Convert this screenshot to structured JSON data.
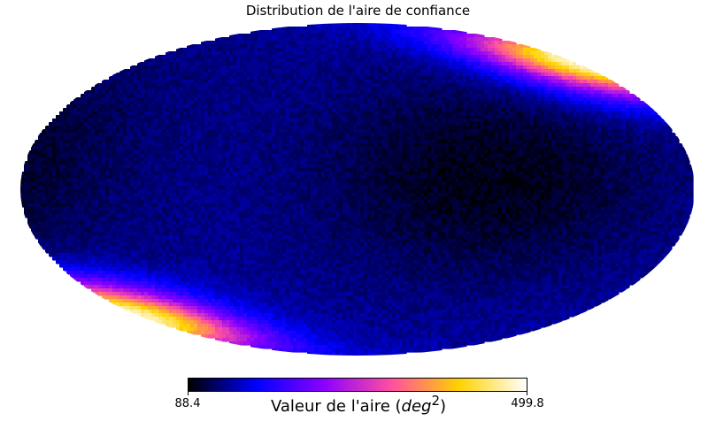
{
  "chart_data": {
    "type": "heatmap",
    "projection": "mollweide",
    "title": "Distribution de l'aire de confiance",
    "colorbar": {
      "label_prefix": "Valeur de l'aire (",
      "label_var": "deg",
      "label_sup": "2",
      "label_suffix": ")",
      "min": 88.4,
      "max": 499.8,
      "min_label": "88.4",
      "max_label": "499.8",
      "colormap": "gnuplot2",
      "stops": [
        "#000000",
        "#0000ff",
        "#8a00ff",
        "#ff4fa0",
        "#ffd200",
        "#ffffff"
      ]
    },
    "hotspots": [
      {
        "name": "north",
        "lon_deg": -95,
        "lat_deg": 60,
        "peak": 499.8
      },
      {
        "name": "south",
        "lon_deg": 95,
        "lat_deg": -60,
        "peak": 499.8
      }
    ],
    "background_level": 140
  }
}
